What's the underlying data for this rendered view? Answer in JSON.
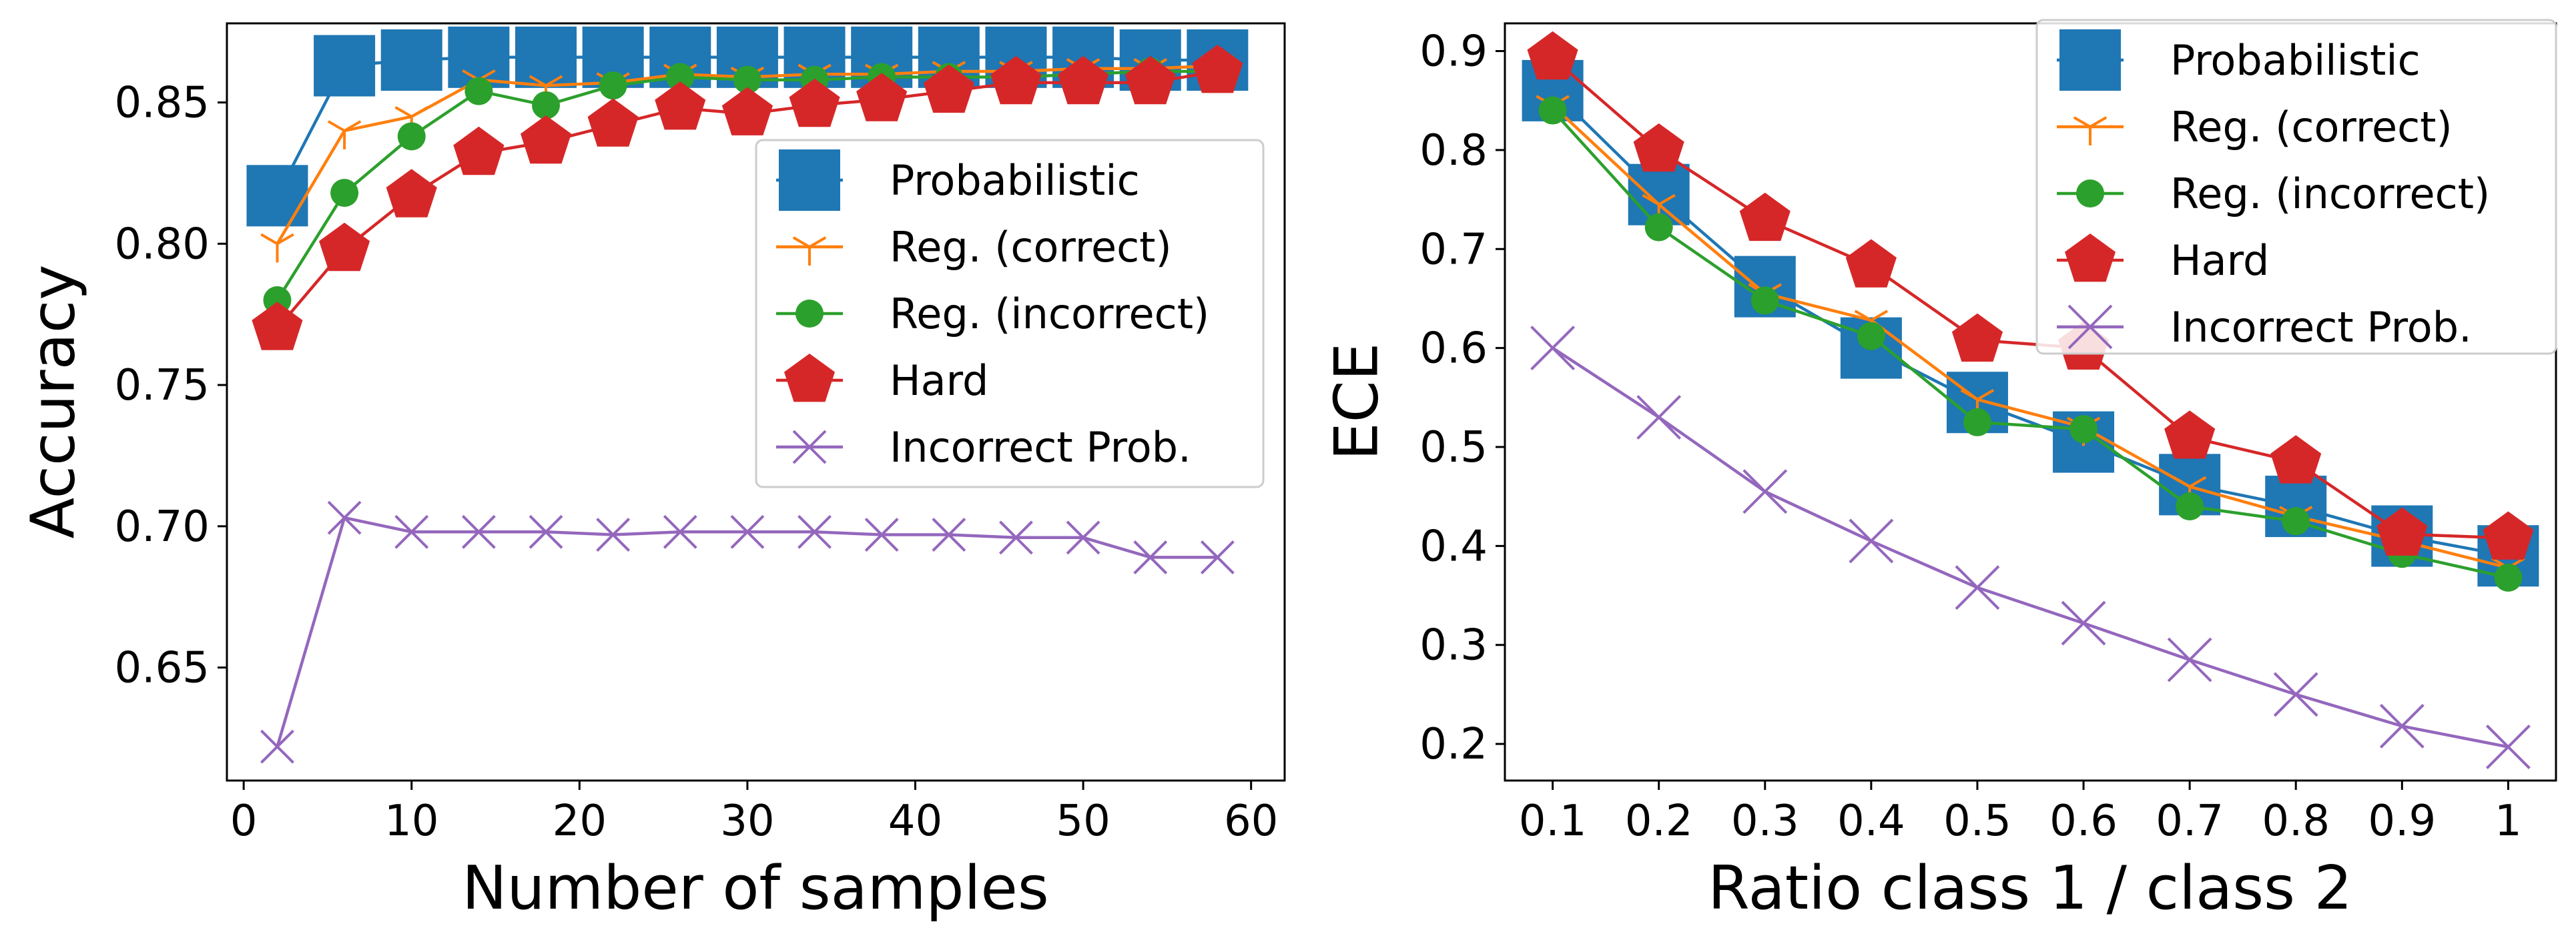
{
  "chart_data": [
    {
      "type": "line",
      "title": "",
      "xlabel": "Number of samples",
      "ylabel": "Accuracy",
      "xlim": [
        -1,
        62
      ],
      "ylim": [
        0.61,
        0.878
      ],
      "xticks": [
        0,
        10,
        20,
        30,
        40,
        50,
        60
      ],
      "xtick_labels": [
        "0",
        "10",
        "20",
        "30",
        "40",
        "50",
        "60"
      ],
      "yticks": [
        0.65,
        0.7,
        0.75,
        0.8,
        0.85
      ],
      "ytick_labels": [
        "0.65",
        "0.70",
        "0.75",
        "0.80",
        "0.85"
      ],
      "legend_position": "center-right",
      "grid": false,
      "x": [
        2,
        6,
        10,
        14,
        18,
        22,
        26,
        30,
        34,
        38,
        42,
        46,
        50,
        54,
        58
      ],
      "series": [
        {
          "name": "Probabilistic",
          "color": "#1f77b4",
          "marker": "square",
          "values": [
            0.817,
            0.863,
            0.865,
            0.866,
            0.866,
            0.866,
            0.866,
            0.866,
            0.866,
            0.866,
            0.866,
            0.866,
            0.866,
            0.865,
            0.865
          ]
        },
        {
          "name": "Reg. (correct)",
          "color": "#ff7f0e",
          "marker": "tri",
          "values": [
            0.8,
            0.84,
            0.845,
            0.858,
            0.856,
            0.857,
            0.86,
            0.859,
            0.86,
            0.86,
            0.861,
            0.861,
            0.862,
            0.862,
            0.863
          ]
        },
        {
          "name": "Reg. (incorrect)",
          "color": "#2ca02c",
          "marker": "circle",
          "values": [
            0.78,
            0.818,
            0.838,
            0.854,
            0.849,
            0.856,
            0.859,
            0.858,
            0.858,
            0.859,
            0.859,
            0.859,
            0.86,
            0.861,
            0.861
          ]
        },
        {
          "name": "Hard",
          "color": "#d62728",
          "marker": "pentagon",
          "values": [
            0.77,
            0.798,
            0.817,
            0.832,
            0.836,
            0.842,
            0.848,
            0.846,
            0.849,
            0.851,
            0.854,
            0.857,
            0.857,
            0.857,
            0.861
          ]
        },
        {
          "name": "Incorrect Prob.",
          "color": "#9467bd",
          "marker": "x",
          "values": [
            0.622,
            0.703,
            0.698,
            0.698,
            0.698,
            0.697,
            0.698,
            0.698,
            0.698,
            0.697,
            0.697,
            0.696,
            0.696,
            0.689,
            0.689
          ]
        }
      ]
    },
    {
      "type": "line",
      "title": "",
      "xlabel": "Ratio class 1 / class 2",
      "ylabel": "ECE",
      "xlim": [
        0.055,
        1.045
      ],
      "ylim": [
        0.163,
        0.928
      ],
      "xticks": [
        0.1,
        0.2,
        0.3,
        0.4,
        0.5,
        0.6,
        0.7,
        0.8,
        0.9,
        1.0
      ],
      "xtick_labels": [
        "0.1",
        "0.2",
        "0.3",
        "0.4",
        "0.5",
        "0.6",
        "0.7",
        "0.8",
        "0.9",
        "1"
      ],
      "yticks": [
        0.2,
        0.3,
        0.4,
        0.5,
        0.6,
        0.7,
        0.8,
        0.9
      ],
      "ytick_labels": [
        "0.2",
        "0.3",
        "0.4",
        "0.5",
        "0.6",
        "0.7",
        "0.8",
        "0.9"
      ],
      "legend_position": "top-right",
      "grid": false,
      "x": [
        0.1,
        0.2,
        0.3,
        0.4,
        0.5,
        0.6,
        0.7,
        0.8,
        0.9,
        1.0
      ],
      "series": [
        {
          "name": "Probabilistic",
          "color": "#1f77b4",
          "marker": "square",
          "values": [
            0.86,
            0.755,
            0.662,
            0.6,
            0.545,
            0.505,
            0.462,
            0.44,
            0.41,
            0.39
          ]
        },
        {
          "name": "Reg. (correct)",
          "color": "#ff7f0e",
          "marker": "tri",
          "values": [
            0.845,
            0.745,
            0.655,
            0.628,
            0.548,
            0.52,
            0.46,
            0.43,
            0.405,
            0.378
          ]
        },
        {
          "name": "Reg. (incorrect)",
          "color": "#2ca02c",
          "marker": "circle",
          "values": [
            0.84,
            0.722,
            0.648,
            0.612,
            0.525,
            0.518,
            0.44,
            0.425,
            0.392,
            0.368
          ]
        },
        {
          "name": "Hard",
          "color": "#d62728",
          "marker": "pentagon",
          "values": [
            0.893,
            0.8,
            0.73,
            0.683,
            0.608,
            0.6,
            0.51,
            0.485,
            0.412,
            0.408
          ]
        },
        {
          "name": "Incorrect Prob.",
          "color": "#9467bd",
          "marker": "x",
          "values": [
            0.6,
            0.53,
            0.455,
            0.405,
            0.358,
            0.322,
            0.285,
            0.25,
            0.218,
            0.197
          ]
        }
      ]
    }
  ]
}
